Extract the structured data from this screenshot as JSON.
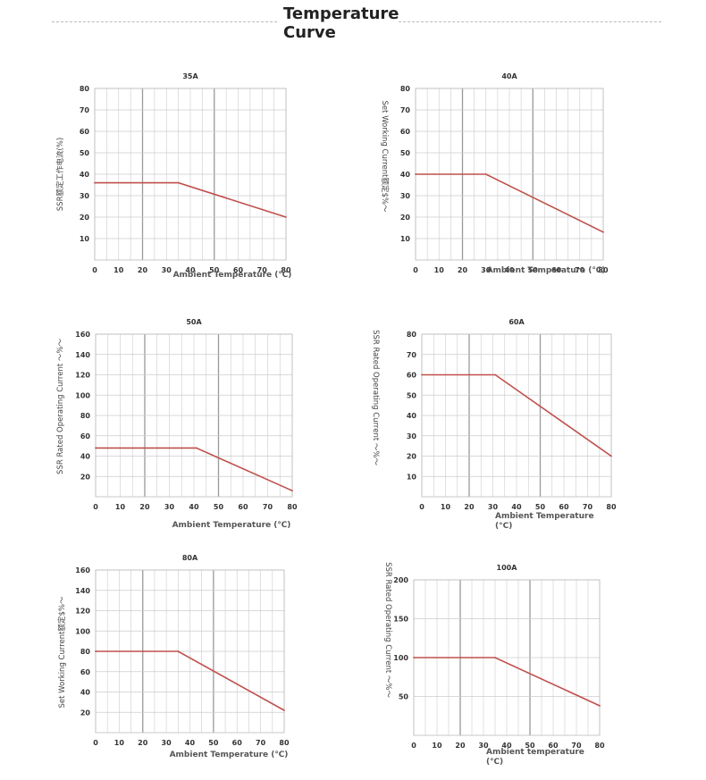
{
  "page": {
    "title": "Temperature Curve"
  },
  "colors": {
    "curve": "#c0504d",
    "grid_minor": "#cccccc",
    "grid_major": "#999999"
  },
  "chart_data": [
    {
      "type": "line",
      "title": "35A",
      "xlabel": "Ambient Temperature (℃)",
      "ylabel": "SSR额定工作电流(%)",
      "x_ticks": [
        0,
        10,
        20,
        30,
        40,
        50,
        60,
        70,
        80
      ],
      "y_ticks": [
        10,
        20,
        30,
        40,
        50,
        60,
        70,
        80
      ],
      "xlim": [
        0,
        80
      ],
      "ylim": [
        0,
        80
      ],
      "series": [
        {
          "x": [
            0,
            35,
            80
          ],
          "y": [
            36,
            36,
            20
          ]
        }
      ]
    },
    {
      "type": "line",
      "title": "40A",
      "xlabel": "Ambient Temperature (℃)",
      "ylabel": "Set Working Current额定$%〜",
      "x_ticks": [
        0,
        10,
        20,
        30,
        40,
        50,
        60,
        70,
        80
      ],
      "y_ticks": [
        10,
        20,
        30,
        40,
        50,
        60,
        70,
        80
      ],
      "xlim": [
        0,
        80
      ],
      "ylim": [
        0,
        80
      ],
      "series": [
        {
          "x": [
            0,
            30,
            80
          ],
          "y": [
            40,
            40,
            13
          ]
        }
      ]
    },
    {
      "type": "line",
      "title": "50A",
      "xlabel": "Ambient Temperature (℃)",
      "ylabel": "SSR Rated Operating Current 〜%〜",
      "x_ticks": [
        0,
        10,
        20,
        30,
        40,
        50,
        60,
        70,
        80
      ],
      "y_ticks": [
        20,
        40,
        60,
        80,
        100,
        120,
        140,
        160
      ],
      "xlim": [
        0,
        80
      ],
      "ylim": [
        0,
        160
      ],
      "series": [
        {
          "x": [
            0,
            41,
            80
          ],
          "y": [
            48,
            48,
            6
          ]
        }
      ]
    },
    {
      "type": "line",
      "title": "60A",
      "xlabel": "Ambient Temperature (°C)",
      "ylabel": "SSR Rated Operating Current 〜%〜",
      "x_ticks": [
        0,
        10,
        20,
        30,
        40,
        50,
        60,
        70,
        80
      ],
      "y_ticks": [
        10,
        20,
        30,
        40,
        50,
        60,
        70,
        80
      ],
      "xlim": [
        0,
        80
      ],
      "ylim": [
        0,
        80
      ],
      "series": [
        {
          "x": [
            0,
            31,
            80
          ],
          "y": [
            60,
            60,
            20
          ]
        }
      ]
    },
    {
      "type": "line",
      "title": "80A",
      "xlabel": "Ambient Temperature (℃)",
      "ylabel": "Set Working Current额定$%〜",
      "x_ticks": [
        0,
        10,
        20,
        30,
        40,
        50,
        60,
        70,
        80
      ],
      "y_ticks": [
        20,
        40,
        60,
        80,
        100,
        120,
        140,
        160
      ],
      "xlim": [
        0,
        80
      ],
      "ylim": [
        0,
        160
      ],
      "series": [
        {
          "x": [
            0,
            35,
            80
          ],
          "y": [
            80,
            80,
            22
          ]
        }
      ]
    },
    {
      "type": "line",
      "title": "100A",
      "xlabel": "Ambient temperature (℃)",
      "ylabel": "SSR Rated Operating Current 〜%〜",
      "x_ticks": [
        0,
        10,
        20,
        30,
        40,
        50,
        60,
        70,
        80
      ],
      "y_ticks": [
        50,
        100,
        150,
        200
      ],
      "xlim": [
        0,
        80
      ],
      "ylim": [
        0,
        200
      ],
      "series": [
        {
          "x": [
            0,
            35,
            80
          ],
          "y": [
            100,
            100,
            38
          ]
        }
      ]
    }
  ]
}
